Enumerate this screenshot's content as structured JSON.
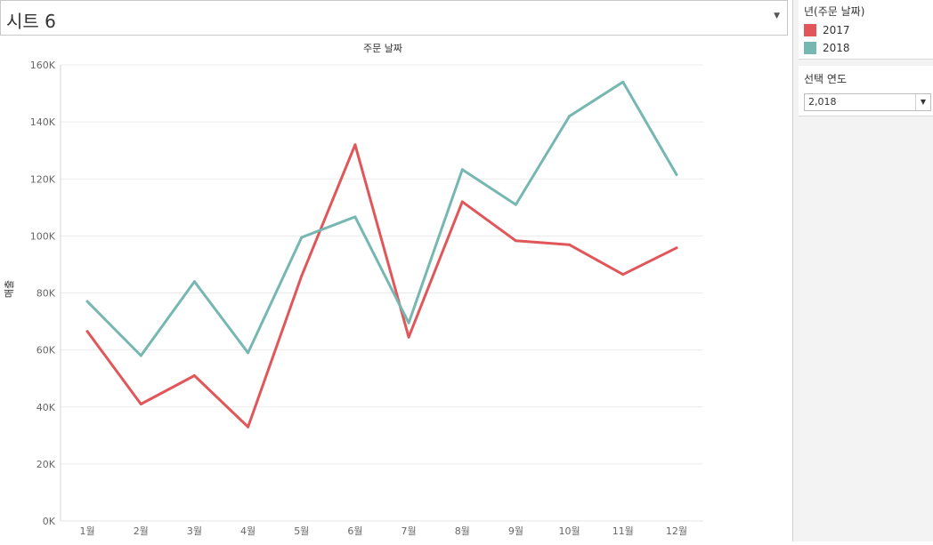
{
  "sheet": {
    "title": "시트 6"
  },
  "legend": {
    "title": "년(주문 날짜)",
    "items": [
      {
        "label": "2017",
        "color": "#e15759"
      },
      {
        "label": "2018",
        "color": "#76b7b2"
      }
    ]
  },
  "filter": {
    "title": "선택 연도",
    "value": "2,018"
  },
  "chart_data": {
    "type": "line",
    "title": "주문 날짜",
    "xlabel": "",
    "ylabel": "매출",
    "categories": [
      "1월",
      "2월",
      "3월",
      "4월",
      "5월",
      "6월",
      "7월",
      "8월",
      "9월",
      "10월",
      "11월",
      "12월"
    ],
    "y_ticks": [
      0,
      20000,
      40000,
      60000,
      80000,
      100000,
      120000,
      140000,
      160000
    ],
    "y_tick_labels": [
      "0K",
      "20K",
      "40K",
      "60K",
      "80K",
      "100K",
      "120K",
      "140K",
      "160K"
    ],
    "ylim": [
      0,
      160000
    ],
    "grid": true,
    "legend_position": "right",
    "series": [
      {
        "name": "2017",
        "color": "#e15759",
        "values": [
          66500,
          41000,
          51000,
          33000,
          86000,
          132000,
          64500,
          112000,
          98300,
          96900,
          86500,
          95800
        ]
      },
      {
        "name": "2018",
        "color": "#76b7b2",
        "values": [
          77000,
          58000,
          84000,
          59000,
          99500,
          106700,
          69500,
          123300,
          111000,
          142000,
          154000,
          121500
        ]
      }
    ]
  }
}
